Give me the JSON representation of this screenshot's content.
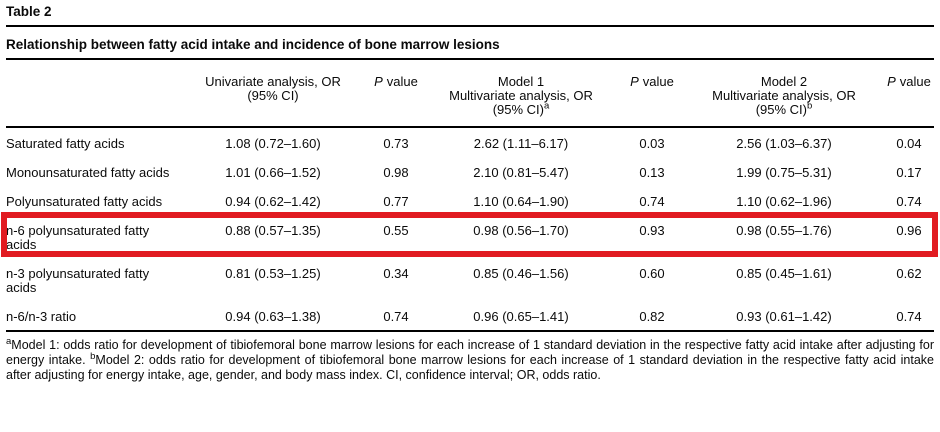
{
  "page": {
    "table_label": "Table 2",
    "table_title": "Relationship between fatty acid intake and incidence of bone marrow lesions"
  },
  "header": {
    "row_label_column": "",
    "univariate": {
      "line1": "Univariate analysis, OR",
      "line2": "(95% CI)"
    },
    "p_label": "P",
    "p_word": "value",
    "model1": {
      "line1": "Model 1",
      "line2": "Multivariate analysis, OR",
      "line3": "(95% CI)",
      "sup": "a"
    },
    "model2": {
      "line1": "Model 2",
      "line2": "Multivariate analysis, OR",
      "line3": "(95% CI)",
      "sup": "b"
    }
  },
  "rows": [
    {
      "label": "Saturated fatty acids",
      "univariate_or": "1.08 (0.72–1.60)",
      "p1": "0.73",
      "model1_or": "2.62 (1.11–6.17)",
      "p2": "0.03",
      "model2_or": "2.56 (1.03–6.37)",
      "p3": "0.04",
      "highlighted": false
    },
    {
      "label": "Monounsaturated fatty acids",
      "univariate_or": "1.01 (0.66–1.52)",
      "p1": "0.98",
      "model1_or": "2.10 (0.81–5.47)",
      "p2": "0.13",
      "model2_or": "1.99 (0.75–5.31)",
      "p3": "0.17",
      "highlighted": false
    },
    {
      "label": "Polyunsaturated fatty acids",
      "univariate_or": "0.94 (0.62–1.42)",
      "p1": "0.77",
      "model1_or": "1.10 (0.64–1.90)",
      "p2": "0.74",
      "model2_or": "1.10 (0.62–1.96)",
      "p3": "0.74",
      "highlighted": false
    },
    {
      "label": "n-6 polyunsaturated fatty acids",
      "univariate_or": "0.88 (0.57–1.35)",
      "p1": "0.55",
      "model1_or": "0.98 (0.56–1.70)",
      "p2": "0.93",
      "model2_or": "0.98 (0.55–1.76)",
      "p3": "0.96",
      "highlighted": true
    },
    {
      "label": "n-3 polyunsaturated fatty acids",
      "univariate_or": "0.81 (0.53–1.25)",
      "p1": "0.34",
      "model1_or": "0.85 (0.46–1.56)",
      "p2": "0.60",
      "model2_or": "0.85 (0.45–1.61)",
      "p3": "0.62",
      "highlighted": false
    },
    {
      "label": "n-6/n-3 ratio",
      "univariate_or": "0.94 (0.63–1.38)",
      "p1": "0.74",
      "model1_or": "0.96 (0.65–1.41)",
      "p2": "0.82",
      "model2_or": "0.93 (0.61–1.42)",
      "p3": "0.74",
      "highlighted": false
    }
  ],
  "footnote": {
    "sup_a": "a",
    "part1": "Model 1: odds ratio for development of tibiofemoral bone marrow lesions for each increase of 1 standard deviation in the respective fatty acid intake after adjusting for energy intake. ",
    "sup_b": "b",
    "part2": "Model 2: odds ratio for development of tibiofemoral bone marrow lesions for each increase of 1 standard deviation in the respective fatty acid intake after adjusting for energy intake, age, gender, and body mass index. CI, confidence interval; OR, odds ratio."
  },
  "highlight_color": "#e11b21"
}
